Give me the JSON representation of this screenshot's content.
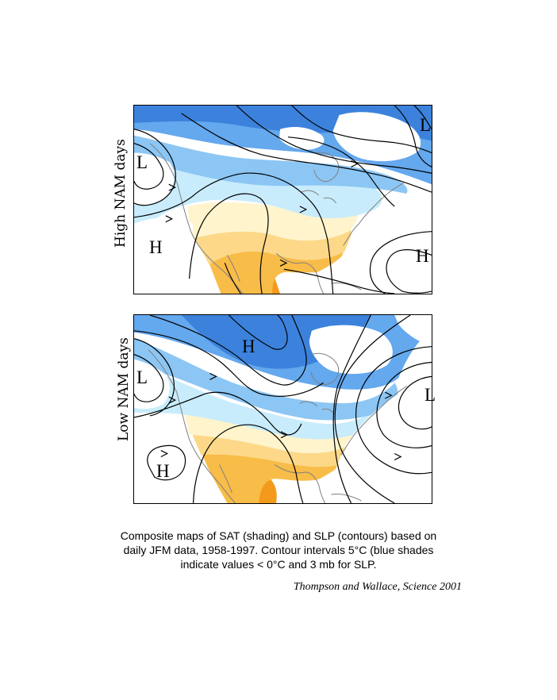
{
  "panels": [
    {
      "side_label": "High NAM days",
      "pressure_labels": [
        "L",
        "L",
        "H",
        "H"
      ]
    },
    {
      "side_label": "Low NAM days",
      "pressure_labels": [
        "H",
        "L",
        "L",
        "H"
      ]
    }
  ],
  "caption": {
    "line1": "Composite maps  of SAT (shading) and SLP (contours) based on",
    "line2": "daily JFM data, 1958-1997. Contour intervals 5°C (blue shades",
    "line3": "indicate values < 0°C and 3 mb for SLP."
  },
  "citation": "Thompson and Wallace, Science 2001",
  "colors": {
    "cold_dark": "#3c82dc",
    "cold_mid": "#64a8ee",
    "cold_light": "#8cc6f4",
    "cold_pale": "#c8ecfc",
    "mild": "#fff4cc",
    "warm_light": "#fcd888",
    "warm_mid": "#f8bc48",
    "warm_dark": "#f49a1a",
    "contour": "#000000",
    "coast": "#7f7f7f"
  }
}
